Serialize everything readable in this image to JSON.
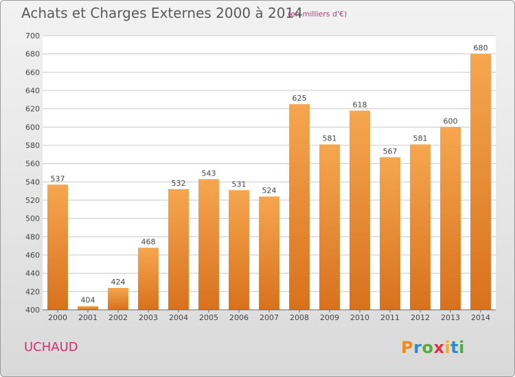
{
  "title": "Achats et Charges Externes 2000 à 2014",
  "subtitle": "(en milliers d'€)",
  "town": "UCHAUD",
  "logo": {
    "text": "Proxiti",
    "letter_colors": [
      "#f28a1e",
      "#2a8bd6",
      "#4fae3a",
      "#e0314a",
      "#f2b01e",
      "#2a8bd6",
      "#4fae3a"
    ]
  },
  "colors": {
    "bar_top": "#f6a650",
    "bar_bottom": "#d8711c",
    "grid": "#c8c8c8",
    "axis_text": "#444444"
  },
  "chart_data": {
    "type": "bar",
    "title": "Achats et Charges Externes 2000 à 2014",
    "categories": [
      "2000",
      "2001",
      "2002",
      "2003",
      "2004",
      "2005",
      "2006",
      "2007",
      "2008",
      "2009",
      "2010",
      "2011",
      "2012",
      "2013",
      "2014"
    ],
    "values": [
      537,
      404,
      424,
      468,
      532,
      543,
      531,
      524,
      625,
      581,
      618,
      567,
      581,
      600,
      680
    ],
    "ylim": [
      400,
      700
    ],
    "yticks": [
      400,
      420,
      440,
      460,
      480,
      500,
      520,
      540,
      560,
      580,
      600,
      620,
      640,
      660,
      680,
      700
    ],
    "grid": true,
    "xlabel": "",
    "ylabel": ""
  }
}
